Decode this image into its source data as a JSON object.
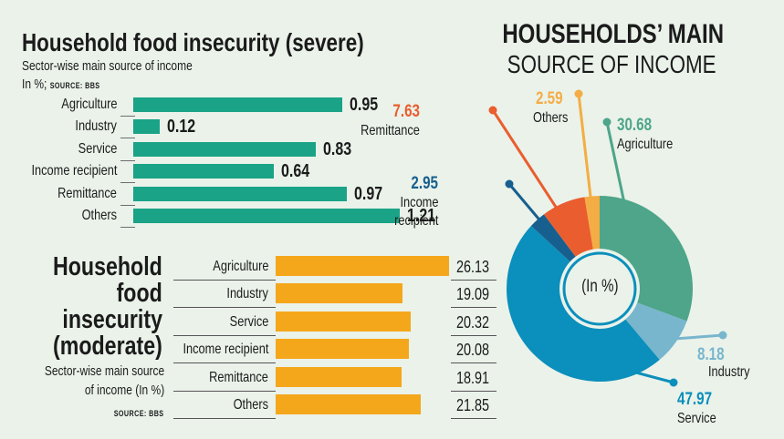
{
  "severe": {
    "title": "Household food insecurity (severe)",
    "subtitle": "Sector-wise main source of income",
    "unit_note": "In %;",
    "source": "SOURCE: BBS"
  },
  "moderate": {
    "title_lines": [
      "Household",
      "food",
      "insecurity",
      "(moderate)"
    ],
    "subtitle_lines": [
      "Sector-wise main source",
      "of income (In %)"
    ],
    "source": "SOURCE: BBS"
  },
  "pie": {
    "title_line1": "HOUSEHOLDS’ MAIN",
    "title_line2": "SOURCE OF INCOME",
    "center_label": "(In %)"
  },
  "colors": {
    "teal_bar": "#1aa386",
    "orange_bar": "#f5a71c",
    "background": "#eaf2ea"
  },
  "chart_data": [
    {
      "type": "bar",
      "orientation": "horizontal",
      "title": "Household food insecurity (severe)",
      "subtitle": "Sector-wise main source of income",
      "unit": "%",
      "categories": [
        "Agriculture",
        "Industry",
        "Service",
        "Income recipient",
        "Remittance",
        "Others"
      ],
      "values": [
        0.95,
        0.12,
        0.83,
        0.64,
        0.97,
        1.21
      ],
      "value_labels": [
        "0.95",
        "0.12",
        "0.83",
        "0.64",
        "0.97",
        "1.21"
      ],
      "xlim": [
        0,
        1.21
      ],
      "grid": false
    },
    {
      "type": "bar",
      "orientation": "horizontal",
      "title": "Household food insecurity (moderate)",
      "subtitle": "Sector-wise main source of income (In %)",
      "unit": "%",
      "categories": [
        "Agriculture",
        "Industry",
        "Service",
        "Income recipient",
        "Remittance",
        "Others"
      ],
      "values": [
        26.13,
        19.09,
        20.32,
        20.08,
        18.91,
        21.85
      ],
      "value_labels": [
        "26.13",
        "19.09",
        "20.32",
        "20.08",
        "18.91",
        "21.85"
      ],
      "xlim": [
        0,
        26.13
      ],
      "grid": false
    },
    {
      "type": "pie",
      "style": "donut",
      "title": "HOUSEHOLDS’ MAIN SOURCE OF INCOME",
      "unit": "%",
      "slices": [
        {
          "label": "Agriculture",
          "value": 30.68,
          "value_label": "30.68",
          "color": "#4ea58a"
        },
        {
          "label": "Industry",
          "value": 8.18,
          "value_label": "8.18",
          "color": "#78b6cd"
        },
        {
          "label": "Service",
          "value": 47.97,
          "value_label": "47.97",
          "color": "#0b8fbc"
        },
        {
          "label": "Income recipient",
          "value": 2.95,
          "value_label": "2.95",
          "color": "#175f8e"
        },
        {
          "label": "Remittance",
          "value": 7.63,
          "value_label": "7.63",
          "color": "#ea5d2e"
        },
        {
          "label": "Others",
          "value": 2.59,
          "value_label": "2.59",
          "color": "#f4ad44"
        }
      ]
    }
  ]
}
